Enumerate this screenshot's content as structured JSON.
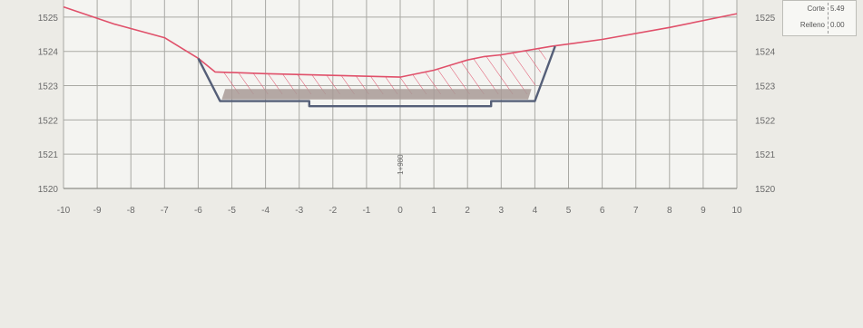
{
  "chart_data": {
    "type": "area",
    "title": "",
    "xlabel": "",
    "ylabel": "",
    "xlim": [
      -10,
      10
    ],
    "ylim": [
      1520,
      1525.5
    ],
    "x_ticks": [
      "-10",
      "-9",
      "-8",
      "-7",
      "-6",
      "-5",
      "-4",
      "-3",
      "-2",
      "-1",
      "0",
      "1",
      "2",
      "3",
      "4",
      "5",
      "6",
      "7",
      "8",
      "9",
      "10"
    ],
    "y_ticks": [
      "1520",
      "1521",
      "1522",
      "1523",
      "1524",
      "1525"
    ],
    "center_label": "1+980",
    "grid": true,
    "legend": {
      "position": "top-right",
      "rows": [
        {
          "label": "Corte",
          "value": "5.49"
        },
        {
          "label": "Relleno",
          "value": "0.00"
        }
      ]
    },
    "series": [
      {
        "role": "terrain",
        "color": "#e0506a",
        "x": [
          -10,
          -8.5,
          -7,
          -6.5,
          -6,
          -5.5,
          -4,
          -2,
          0,
          1,
          2,
          2.5,
          3,
          4.5,
          6,
          8,
          10
        ],
        "y": [
          1525.3,
          1524.8,
          1524.4,
          1524.1,
          1523.8,
          1523.4,
          1523.35,
          1523.3,
          1523.25,
          1523.45,
          1523.75,
          1523.85,
          1523.9,
          1524.15,
          1524.35,
          1524.7,
          1525.1
        ]
      },
      {
        "role": "design-section",
        "color": "#555f78",
        "x": [
          -6,
          -5.35,
          -3,
          -2.7,
          -2.7,
          2.7,
          2.7,
          4,
          4.6
        ],
        "y": [
          1523.8,
          1522.55,
          1522.55,
          1522.55,
          1522.4,
          1522.4,
          1522.55,
          1522.55,
          1524.15
        ]
      }
    ],
    "cut_area": {
      "color": "#e0506a",
      "x": [
        -5.6,
        -4,
        -2,
        0,
        1,
        2,
        2.5,
        3,
        4.5,
        3.9,
        -5.15
      ],
      "y": [
        1523.4,
        1523.35,
        1523.3,
        1523.25,
        1523.45,
        1523.75,
        1523.85,
        1523.9,
        1524.15,
        1522.75,
        1522.75
      ]
    },
    "pavement_layer": {
      "color": "#a89a96",
      "x": [
        -5.2,
        3.9,
        3.8,
        -5.3
      ],
      "y": [
        1522.9,
        1522.9,
        1522.6,
        1522.6
      ]
    }
  }
}
